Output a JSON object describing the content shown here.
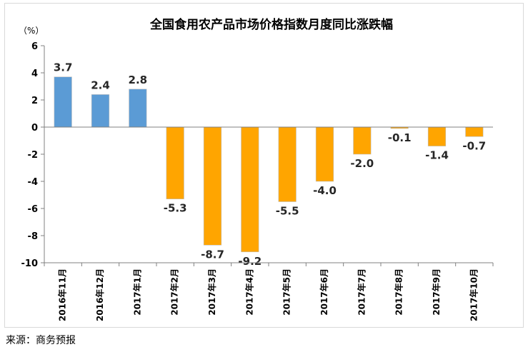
{
  "chart_data": {
    "type": "bar",
    "title": "全国食用农产品市场价格指数月度同比涨跌幅",
    "unit_label": "（%）",
    "categories": [
      "2016年11月",
      "2016年12月",
      "2017年1月",
      "2017年2月",
      "2017年3月",
      "2017年4月",
      "2017年5月",
      "2017年6月",
      "2017年7月",
      "2017年8月",
      "2017年9月",
      "2017年10月"
    ],
    "values": [
      3.7,
      2.4,
      2.8,
      -5.3,
      -8.7,
      -9.2,
      -5.5,
      -4.0,
      -2.0,
      -0.1,
      -1.4,
      -0.7
    ],
    "value_labels": [
      "3.7",
      "2.4",
      "2.8",
      "-5.3",
      "-8.7",
      "-9.2",
      "-5.5",
      "-4.0",
      "-2.0",
      "-0.1",
      "-1.4",
      "-0.7"
    ],
    "ylim": [
      -10,
      6
    ],
    "yticks": [
      6,
      4,
      2,
      0,
      -2,
      -4,
      -6,
      -8,
      -10
    ],
    "colors": {
      "positive": "#5b9bd5",
      "negative": "#ffa500"
    },
    "grid": false,
    "legend": "none"
  },
  "source": "来源：商务预报"
}
